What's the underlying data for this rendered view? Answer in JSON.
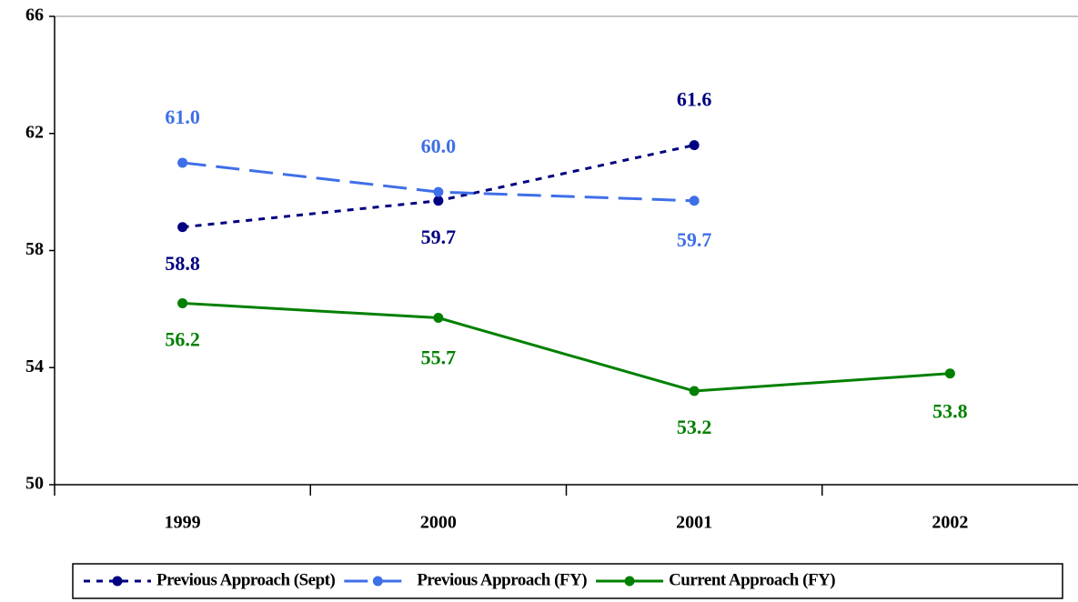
{
  "chart_data": {
    "type": "line",
    "categories": [
      "1999",
      "2000",
      "2001",
      "2002"
    ],
    "series": [
      {
        "name": "Previous Approach (Sept)",
        "color": "#000080",
        "dash": "dotted",
        "values": [
          58.8,
          59.7,
          61.6,
          null
        ]
      },
      {
        "name": "Previous Approach (FY)",
        "color": "#3f6fe8",
        "dash": "dashed",
        "values": [
          61.0,
          60.0,
          59.7,
          null
        ],
        "value_labels": [
          "61.0",
          "60.0",
          "59.7",
          null
        ]
      },
      {
        "name": "Current Approach (FY)",
        "color": "#008000",
        "dash": "solid",
        "values": [
          56.2,
          55.7,
          53.2,
          53.8
        ]
      }
    ],
    "ylim": [
      50,
      66
    ],
    "yticks": [
      50,
      54,
      58,
      62,
      66
    ],
    "legend": "bottom"
  }
}
